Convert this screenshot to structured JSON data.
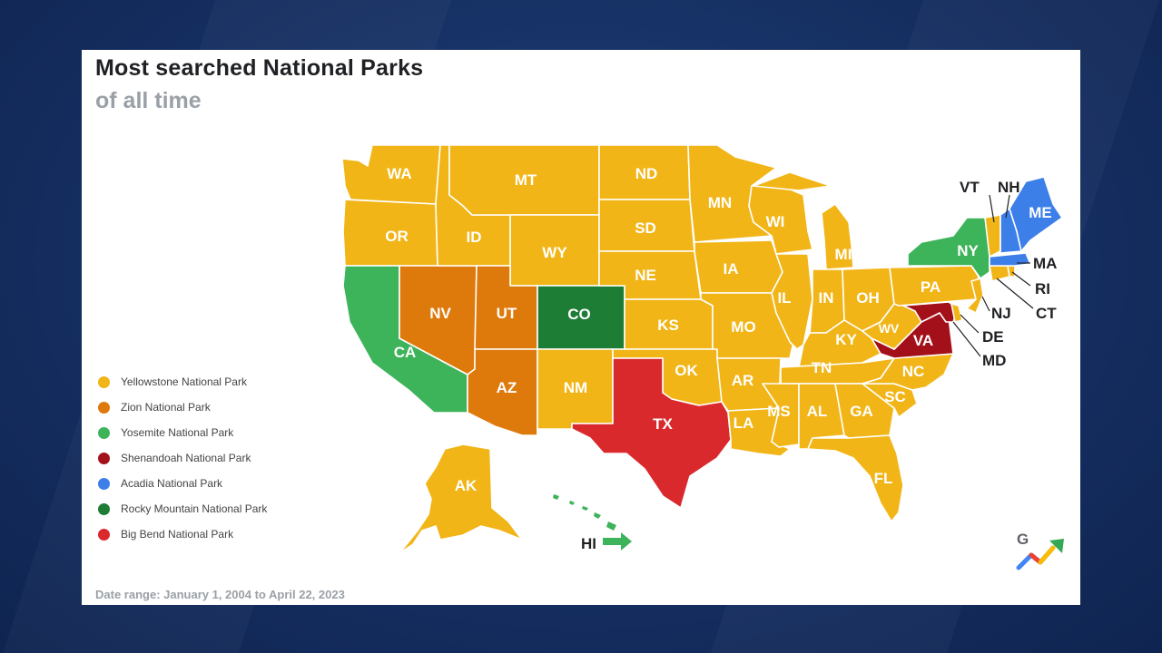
{
  "header": {
    "title": "Most searched National Parks",
    "subtitle": "of all time"
  },
  "colors": {
    "yellowstone": "#f1b517",
    "zion": "#de7a0c",
    "yosemite": "#3db35a",
    "shenandoah": "#a3101a",
    "acadia": "#3c7fe8",
    "rocky_mountain": "#1e7d35",
    "big_bend": "#d9292c"
  },
  "legend": [
    {
      "label": "Yellowstone National Park",
      "color": "#f1b517"
    },
    {
      "label": "Zion National Park",
      "color": "#de7a0c"
    },
    {
      "label": "Yosemite National Park",
      "color": "#3db35a"
    },
    {
      "label": "Shenandoah National Park",
      "color": "#a3101a"
    },
    {
      "label": "Acadia National Park",
      "color": "#3c7fe8"
    },
    {
      "label": "Rocky Mountain National Park",
      "color": "#1e7d35"
    },
    {
      "label": "Big Bend National Park",
      "color": "#d9292c"
    }
  ],
  "states": {
    "WA": "WA",
    "OR": "OR",
    "CA": "CA",
    "NV": "NV",
    "ID": "ID",
    "MT": "MT",
    "WY": "WY",
    "UT": "UT",
    "AZ": "AZ",
    "CO": "CO",
    "NM": "NM",
    "ND": "ND",
    "SD": "SD",
    "NE": "NE",
    "KS": "KS",
    "OK": "OK",
    "TX": "TX",
    "MN": "MN",
    "IA": "IA",
    "MO": "MO",
    "AR": "AR",
    "LA": "LA",
    "WI": "WI",
    "IL": "IL",
    "MI": "MI",
    "IN": "IN",
    "OH": "OH",
    "KY": "KY",
    "TN": "TN",
    "MS": "MS",
    "AL": "AL",
    "GA": "GA",
    "FL": "FL",
    "SC": "SC",
    "NC": "NC",
    "VA": "VA",
    "WV": "WV",
    "PA": "PA",
    "NY": "NY",
    "VT": "VT",
    "NH": "NH",
    "ME": "ME",
    "MA": "MA",
    "RI": "RI",
    "CT": "CT",
    "NJ": "NJ",
    "DE": "DE",
    "MD": "MD",
    "AK": "AK",
    "HI": "HI"
  },
  "state_park": {
    "WA": "Yellowstone National Park",
    "OR": "Yellowstone National Park",
    "CA": "Yosemite National Park",
    "NV": "Zion National Park",
    "ID": "Yellowstone National Park",
    "MT": "Yellowstone National Park",
    "WY": "Yellowstone National Park",
    "UT": "Zion National Park",
    "AZ": "Zion National Park",
    "CO": "Rocky Mountain National Park",
    "NM": "Yellowstone National Park",
    "ND": "Yellowstone National Park",
    "SD": "Yellowstone National Park",
    "NE": "Yellowstone National Park",
    "KS": "Yellowstone National Park",
    "OK": "Yellowstone National Park",
    "TX": "Big Bend National Park",
    "MN": "Yellowstone National Park",
    "IA": "Yellowstone National Park",
    "MO": "Yellowstone National Park",
    "AR": "Yellowstone National Park",
    "LA": "Yellowstone National Park",
    "WI": "Yellowstone National Park",
    "IL": "Yellowstone National Park",
    "MI": "Yellowstone National Park",
    "IN": "Yellowstone National Park",
    "OH": "Yellowstone National Park",
    "KY": "Yellowstone National Park",
    "TN": "Yellowstone National Park",
    "MS": "Yellowstone National Park",
    "AL": "Yellowstone National Park",
    "GA": "Yellowstone National Park",
    "FL": "Yellowstone National Park",
    "SC": "Yellowstone National Park",
    "NC": "Yellowstone National Park",
    "VA": "Shenandoah National Park",
    "WV": "Yellowstone National Park",
    "PA": "Yellowstone National Park",
    "NY": "Yosemite National Park",
    "VT": "Yellowstone National Park",
    "NH": "Acadia National Park",
    "ME": "Acadia National Park",
    "MA": "Acadia National Park",
    "RI": "Yellowstone National Park",
    "CT": "Yellowstone National Park",
    "NJ": "Yellowstone National Park",
    "DE": "Yellowstone National Park",
    "MD": "Shenandoah National Park",
    "AK": "Yellowstone National Park",
    "HI": "Yosemite National Park"
  },
  "footnote": "Date range: January 1, 2004 to April 22, 2023",
  "logo": {
    "letter": "G",
    "icon": "google-trends-icon"
  }
}
